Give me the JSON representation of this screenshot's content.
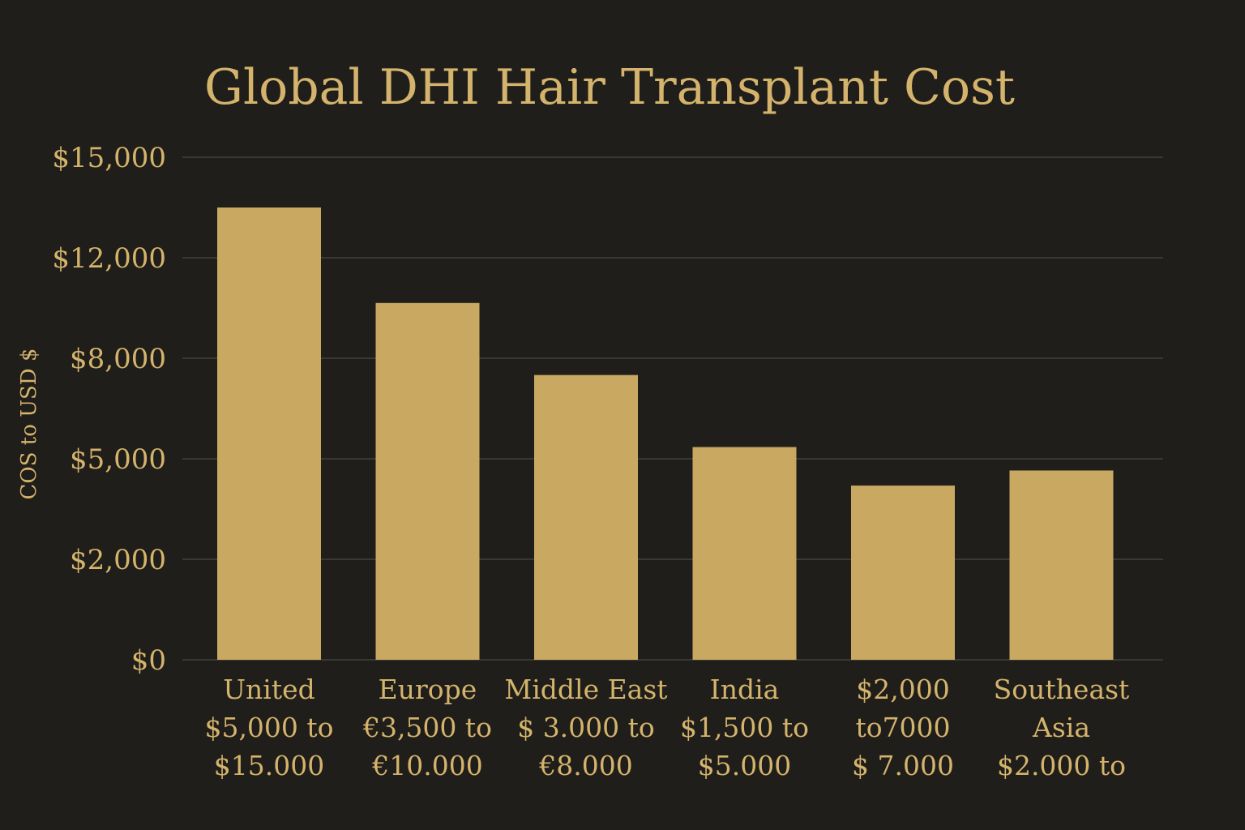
{
  "chart_data": {
    "type": "bar",
    "title": "Global DHI Hair Transplant Cost",
    "ylabel": "COS to USD $",
    "xlabel": "",
    "ytick_labels": [
      "$0",
      "$2,000",
      "$5,000",
      "$8,000",
      "$12,000",
      "$15,000"
    ],
    "categories": [
      [
        "United",
        "$5,000 to",
        "$15.000"
      ],
      [
        "Europe",
        "€3,500 to",
        "€10.000"
      ],
      [
        "Middle East",
        "$ 3.000 to",
        "€8.000"
      ],
      [
        "India",
        "$1,500 to",
        "$5.000"
      ],
      [
        "$2,000",
        "to7000",
        "$ 7.000"
      ],
      [
        "Southeast",
        "Asia",
        "$2.000 to"
      ]
    ],
    "values": [
      13500,
      10200,
      7500,
      5350,
      4200,
      4650
    ],
    "grid": true,
    "legend": "none",
    "colors": {
      "background": "#1f1e1a",
      "bar": "#c9a862",
      "text": "#d4b36c",
      "grid": "#3a3833"
    }
  }
}
